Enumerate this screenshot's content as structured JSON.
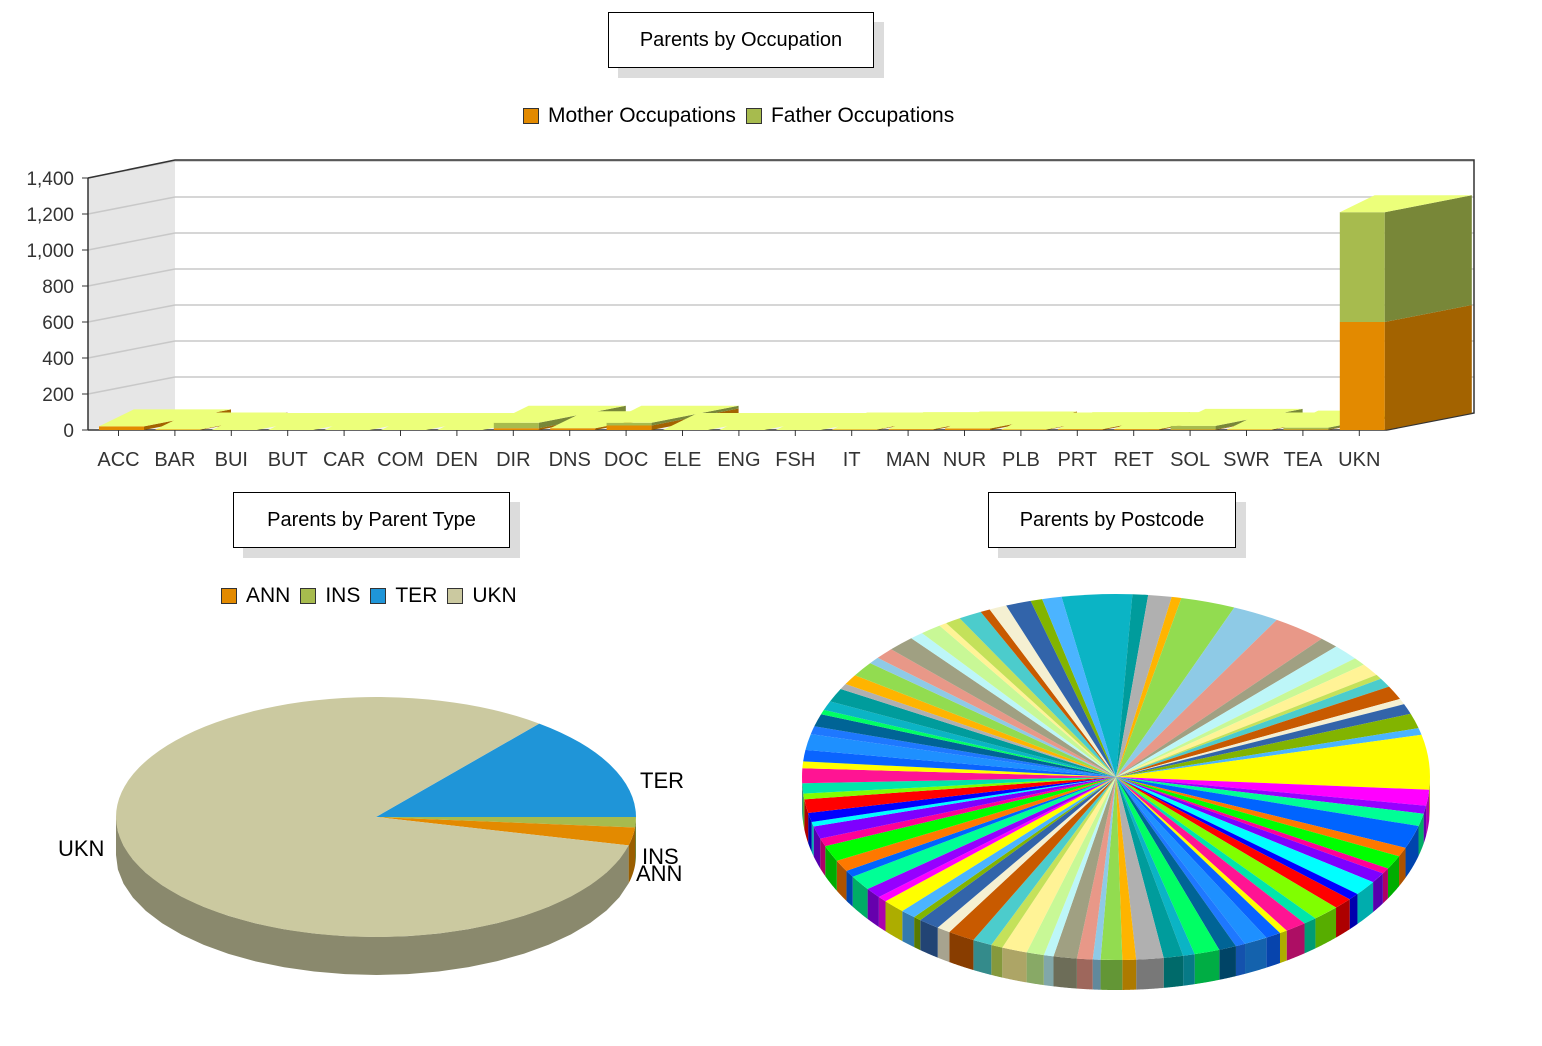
{
  "chart_data": [
    {
      "type": "bar",
      "title": "Parents by Occupation",
      "categories": [
        "ACC",
        "BAR",
        "BUI",
        "BUT",
        "CAR",
        "COM",
        "DEN",
        "DIR",
        "DNS",
        "DOC",
        "ELE",
        "ENG",
        "FSH",
        "IT",
        "MAN",
        "NUR",
        "PLB",
        "PRT",
        "RET",
        "SOL",
        "SWR",
        "TEA",
        "UKN"
      ],
      "series": [
        {
          "name": "Mother Occupations",
          "values": [
            20,
            3,
            0,
            0,
            0,
            0,
            0,
            10,
            10,
            25,
            0,
            0,
            0,
            3,
            5,
            8,
            3,
            5,
            5,
            3,
            3,
            3,
            600
          ]
        },
        {
          "name": "Father Occupations",
          "values": [
            0,
            0,
            0,
            0,
            0,
            0,
            0,
            30,
            0,
            15,
            0,
            0,
            0,
            0,
            0,
            0,
            0,
            0,
            0,
            20,
            0,
            10,
            610
          ]
        }
      ],
      "stacked": true,
      "ylim": [
        0,
        1400
      ],
      "yticks": [
        "0",
        "200",
        "400",
        "600",
        "800",
        "1,000",
        "1,200",
        "1,400"
      ],
      "grid": true,
      "legend": "top",
      "colors": {
        "mother": "#e38a00",
        "father": "#a7bb4e",
        "bar_top": "#ecff7a"
      }
    },
    {
      "type": "pie",
      "title": "Parents by Parent Type",
      "labels": [
        "ANN",
        "INS",
        "TER",
        "UKN"
      ],
      "values": [
        2.4,
        1.4,
        14.2,
        82.0
      ],
      "colors": [
        "#e38a00",
        "#a7bb4e",
        "#1f95d8",
        "#cbc9a0"
      ],
      "legend": "top"
    },
    {
      "type": "pie",
      "title": "Parents by Postcode",
      "slice_count": 96,
      "colors": [
        "#0bb4c5",
        "#009c9c",
        "#b0b0b0",
        "#ffb400",
        "#92dc50",
        "#8ecae6",
        "#e89888",
        "#a0a082",
        "#bdf6f8",
        "#c8f896",
        "#fff396",
        "#c4e15a",
        "#4ccccc",
        "#c85a00",
        "#f5f0d2",
        "#3264aa",
        "#82b400",
        "#4bb4ff",
        "#ffff00",
        "#ff00ff",
        "#9600ff",
        "#00ff96",
        "#0064ff",
        "#ff7800",
        "#00ff00",
        "#ff0096",
        "#7e00ff",
        "#00ffff",
        "#0000ff",
        "#ff0000",
        "#80ff00",
        "#00e6aa",
        "#ff1493",
        "#ffff00",
        "#0a64ff",
        "#1e90ff",
        "#1e78ff",
        "#006496",
        "#00ff64"
      ]
    }
  ]
}
